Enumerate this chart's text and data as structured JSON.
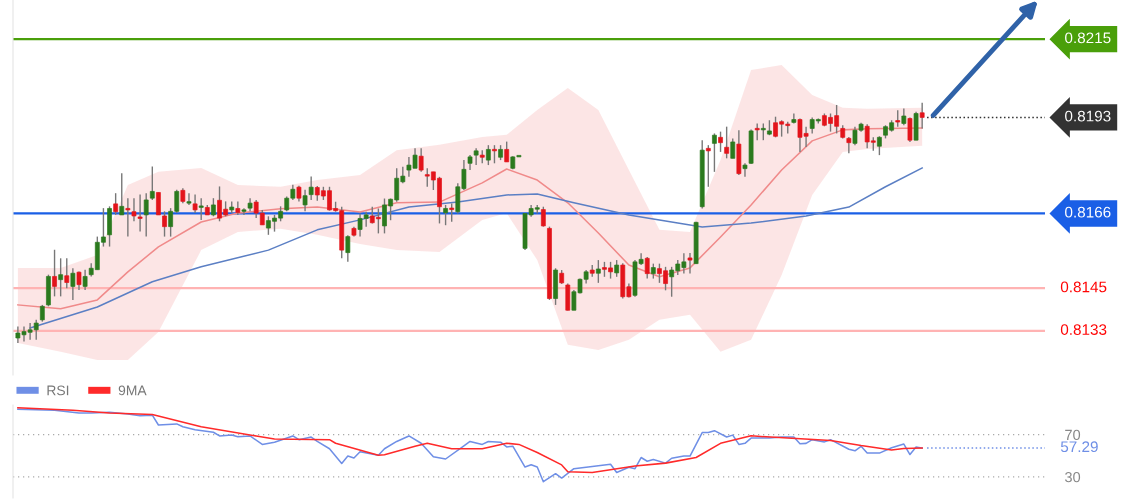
{
  "chart_data": [
    {
      "type": "candlestick",
      "tick_labels": false,
      "ylim": [
        0.81206,
        0.8226
      ],
      "colors": [
        "#2b7a1e",
        "#2b7a1e",
        "#2b7a1e",
        "#2b7a1e",
        "#2b7a1e",
        "#2b7a1e",
        "#e3141b",
        "#2b7a1e",
        "#e3141b",
        "#2b7a1e",
        "#e3141b",
        "#2b7a1e",
        "#2b7a1e",
        "#2b7a1e",
        "#2b7a1e",
        "#2b7a1e",
        "#e3141b",
        "#2b7a1e",
        "#e3141b",
        "#e3141b",
        "#e3141b",
        "#2b7a1e",
        "#2b7a1e",
        "#e3141b",
        "#e3141b",
        "#2b7a1e",
        "#2b7a1e",
        "#e3141b",
        "#2b7a1e",
        "#e3141b",
        "#2b7a1e",
        "#e3141b",
        "#2b7a1e",
        "#e3141b",
        "#e3141b",
        "#2b7a1e",
        "#e3141b",
        "#2b7a1e",
        "#2b7a1e",
        "#e3141b",
        "#e3141b",
        "#2b7a1e",
        "#2b7a1e",
        "#2b7a1e",
        "#2b7a1e",
        "#2b7a1e",
        "#e3141b",
        "#2b7a1e",
        "#2b7a1e",
        "#e3141b",
        "#e3141b",
        "#e3141b",
        "#e3141b",
        "#e3141b",
        "#2b7a1e",
        "#e3141b",
        "#2b7a1e",
        "#2b7a1e",
        "#e3141b",
        "#e3141b",
        "#2b7a1e",
        "#2b7a1e",
        "#2b7a1e",
        "#2b7a1e",
        "#2b7a1e",
        "#2b7a1e",
        "#e3141b",
        "#e3141b",
        "#e3141b",
        "#e3141b",
        "#2b7a1e",
        "#e3141b",
        "#2b7a1e",
        "#2b7a1e",
        "#2b7a1e",
        "#2b7a1e",
        "#e3141b",
        "#2b7a1e",
        "#e3141b",
        "#2b7a1e",
        "#e3141b",
        "#2b7a1e",
        "#2b7a1e",
        "#2b7a1e",
        "#2b7a1e",
        "#2b7a1e",
        "#e3141b",
        "#e3141b",
        "#2b7a1e",
        "#e3141b",
        "#e3141b",
        "#2b7a1e",
        "#2b7a1e",
        "#2b7a1e",
        "#e3141b",
        "#2b7a1e",
        "#e3141b",
        "#e3141b",
        "#2b7a1e",
        "#e3141b",
        "#e3141b",
        "#2b7a1e",
        "#2b7a1e",
        "#e3141b",
        "#2b7a1e",
        "#e3141b",
        "#e3141b",
        "#2b7a1e",
        "#2b7a1e",
        "#2b7a1e",
        "#e3141b",
        "#2b7a1e",
        "#2b7a1e",
        "#e3141b",
        "#2b7a1e",
        "#e3141b",
        "#e3141b",
        "#2b7a1e",
        "#e3141b",
        "#2b7a1e",
        "#2b7a1e",
        "#e3141b",
        "#2b7a1e",
        "#2b7a1e",
        "#e3141b",
        "#e3141b",
        "#e3141b",
        "#2b7a1e",
        "#e3141b",
        "#e3141b",
        "#2b7a1e",
        "#2b7a1e",
        "#e3141b",
        "#e3141b",
        "#e3141b",
        "#e3141b",
        "#e3141b",
        "#2b7a1e",
        "#2b7a1e",
        "#e3141b",
        "#e3141b",
        "#2b7a1e",
        "#2b7a1e",
        "#2b7a1e",
        "#e3141b",
        "#2b7a1e",
        "#e3141b",
        "#2b7a1e",
        "#e3141b"
      ],
      "categories": [
        null,
        null,
        null,
        null,
        null,
        null,
        null,
        null,
        null,
        null,
        null,
        null,
        null,
        null,
        null,
        null,
        null,
        null,
        null,
        null,
        null,
        null,
        null,
        null,
        null,
        null,
        null,
        null,
        null,
        null,
        null,
        null,
        null,
        null,
        null,
        null,
        null,
        null,
        null,
        null,
        null,
        null,
        null,
        null,
        null,
        null,
        null,
        null,
        null,
        null,
        null,
        null,
        null,
        null,
        null,
        null,
        null,
        null,
        null,
        null,
        null,
        null,
        null,
        null,
        null,
        null,
        null,
        null,
        null,
        null,
        null,
        null,
        null,
        null,
        null,
        null,
        null,
        null,
        null,
        null,
        null,
        null,
        null,
        null,
        null,
        null,
        null,
        null,
        null,
        null,
        null,
        null,
        null,
        null,
        null,
        null,
        null,
        null,
        null,
        null,
        null,
        null,
        null,
        null,
        null,
        null,
        null,
        null,
        null,
        null,
        null,
        null,
        null,
        null,
        null,
        null,
        null,
        null,
        null,
        null,
        null,
        null,
        null,
        null,
        null,
        null,
        null,
        null,
        null,
        null,
        null,
        null,
        null,
        null,
        null,
        null,
        null,
        null,
        null,
        null,
        null,
        null,
        null,
        null,
        null,
        null,
        null,
        null,
        null
      ],
      "ohlc": [
        [
          0.8131,
          0.81342,
          0.81296,
          0.81324
        ],
        [
          0.81319,
          0.81342,
          0.813,
          0.81328
        ],
        [
          0.81326,
          0.81352,
          0.81305,
          0.81333
        ],
        [
          0.81333,
          0.81361,
          0.81305,
          0.81352
        ],
        [
          0.81361,
          0.81403,
          0.81356,
          0.81399
        ],
        [
          0.81403,
          0.81488,
          0.81399,
          0.81483
        ],
        [
          0.81483,
          0.81558,
          0.81427,
          0.81455
        ],
        [
          0.81474,
          0.81534,
          0.81427,
          0.81488
        ],
        [
          0.81485,
          0.81534,
          0.8145,
          0.81466
        ],
        [
          0.81455,
          0.81506,
          0.81417,
          0.81492
        ],
        [
          0.81495,
          0.81497,
          0.81445,
          0.8146
        ],
        [
          0.81455,
          0.81502,
          0.81445,
          0.81483
        ],
        [
          0.81488,
          0.8152,
          0.81483,
          0.81506
        ],
        [
          0.81502,
          0.81595,
          0.81502,
          0.81579
        ],
        [
          0.81579,
          0.81675,
          0.81567,
          0.81594
        ],
        [
          0.816,
          0.8168,
          0.81567,
          0.81674
        ],
        [
          0.81687,
          0.81717,
          0.81656,
          0.81665
        ],
        [
          0.81656,
          0.81773,
          0.81656,
          0.8168
        ],
        [
          0.81673,
          0.81703,
          0.81595,
          0.8167
        ],
        [
          0.81665,
          0.81703,
          0.81638,
          0.81653
        ],
        [
          0.81647,
          0.81713,
          0.81609,
          0.81646
        ],
        [
          0.81656,
          0.81717,
          0.81595,
          0.81698
        ],
        [
          0.81703,
          0.81792,
          0.81698,
          0.81722
        ],
        [
          0.81719,
          0.81719,
          0.81656,
          0.81656
        ],
        [
          0.81653,
          0.81666,
          0.81595,
          0.81623
        ],
        [
          0.81623,
          0.81675,
          0.81595,
          0.81666
        ],
        [
          0.81666,
          0.81727,
          0.81661,
          0.81722
        ],
        [
          0.81725,
          0.81731,
          0.81689,
          0.81694
        ],
        [
          0.81689,
          0.81717,
          0.81684,
          0.8169
        ],
        [
          0.81687,
          0.81713,
          0.81661,
          0.8167
        ],
        [
          0.81677,
          0.81703,
          0.81642,
          0.81678
        ],
        [
          0.81677,
          0.81684,
          0.81656,
          0.81656
        ],
        [
          0.81656,
          0.81703,
          0.81652,
          0.81684
        ],
        [
          0.81697,
          0.81736,
          0.81638,
          0.81647
        ],
        [
          0.81672,
          0.81694,
          0.81652,
          0.81656
        ],
        [
          0.8167,
          0.81694,
          0.81661,
          0.81678
        ],
        [
          0.81674,
          0.81694,
          0.81656,
          0.81663
        ],
        [
          0.81666,
          0.81675,
          0.81656,
          0.81667
        ],
        [
          0.81675,
          0.81703,
          0.81666,
          0.81689
        ],
        [
          0.81692,
          0.81698,
          0.81647,
          0.81661
        ],
        [
          0.81661,
          0.8167,
          0.81628,
          0.81628
        ],
        [
          0.81619,
          0.81652,
          0.816,
          0.8164
        ],
        [
          0.81638,
          0.81656,
          0.81609,
          0.81647
        ],
        [
          0.81647,
          0.8168,
          0.81638,
          0.81666
        ],
        [
          0.8167,
          0.81708,
          0.81666,
          0.81703
        ],
        [
          0.81703,
          0.81741,
          0.81698,
          0.81728
        ],
        [
          0.81734,
          0.81738,
          0.81694,
          0.81703
        ],
        [
          0.81684,
          0.81727,
          0.81666,
          0.8171
        ],
        [
          0.81713,
          0.81764,
          0.81698,
          0.81734
        ],
        [
          0.81733,
          0.81737,
          0.81696,
          0.81712
        ],
        [
          0.81724,
          0.81735,
          0.81698,
          0.81709
        ],
        [
          0.81724,
          0.81735,
          0.81668,
          0.8167
        ],
        [
          0.81674,
          0.81693,
          0.81665,
          0.81668
        ],
        [
          0.81668,
          0.81679,
          0.81534,
          0.81557
        ],
        [
          0.8155,
          0.81599,
          0.81524,
          0.81595
        ],
        [
          0.81618,
          0.81623,
          0.81595,
          0.81599
        ],
        [
          0.81615,
          0.8166,
          0.81595,
          0.81646
        ],
        [
          0.81646,
          0.81665,
          0.81623,
          0.81656
        ],
        [
          0.81653,
          0.81679,
          0.81632,
          0.81634
        ],
        [
          0.81646,
          0.81674,
          0.81604,
          0.81645
        ],
        [
          0.81625,
          0.81702,
          0.81604,
          0.81684
        ],
        [
          0.81681,
          0.81702,
          0.81641,
          0.817
        ],
        [
          0.81698,
          0.81787,
          0.81693,
          0.81759
        ],
        [
          0.81749,
          0.81791,
          0.81745,
          0.81765
        ],
        [
          0.81782,
          0.81819,
          0.81763,
          0.81796
        ],
        [
          0.81787,
          0.81843,
          0.81787,
          0.81824
        ],
        [
          0.81821,
          0.81843,
          0.81777,
          0.81782
        ],
        [
          0.81766,
          0.81787,
          0.81735,
          0.81765
        ],
        [
          0.81777,
          0.81777,
          0.81726,
          0.81754
        ],
        [
          0.81759,
          0.81763,
          0.81632,
          0.81679
        ],
        [
          0.81662,
          0.81684,
          0.81627,
          0.81674
        ],
        [
          0.81672,
          0.81688,
          0.81637,
          0.81671
        ],
        [
          0.81665,
          0.81745,
          0.8166,
          0.81735
        ],
        [
          0.8173,
          0.8181,
          0.81726,
          0.81784
        ],
        [
          0.81801,
          0.81824,
          0.81782,
          0.81819
        ],
        [
          0.81824,
          0.81843,
          0.81796,
          0.81836
        ],
        [
          0.81824,
          0.81838,
          0.81801,
          0.81818
        ],
        [
          0.8181,
          0.81852,
          0.81796,
          0.8184
        ],
        [
          0.8184,
          0.81852,
          0.81801,
          0.81836
        ],
        [
          0.81818,
          0.81852,
          0.8181,
          0.8184
        ],
        [
          0.8184,
          0.81862,
          0.81805,
          0.81805
        ],
        [
          0.81787,
          0.81821,
          0.81784,
          0.81819
        ],
        [
          0.81819,
          0.81821,
          0.81817,
          0.8182
        ],
        [
          0.81562,
          0.8166,
          0.81557,
          0.8166
        ],
        [
          0.81656,
          0.81684,
          0.81651,
          0.81674
        ],
        [
          0.81672,
          0.81684,
          0.8166,
          0.81673
        ],
        [
          0.81671,
          0.81679,
          0.81623,
          0.81625
        ],
        [
          0.81618,
          0.81623,
          0.81417,
          0.81421
        ],
        [
          0.81421,
          0.81506,
          0.81403,
          0.81501
        ],
        [
          0.81492,
          0.81501,
          0.81462,
          0.81465
        ],
        [
          0.81459,
          0.81463,
          0.81387,
          0.81388
        ],
        [
          0.81388,
          0.81445,
          0.81388,
          0.8144
        ],
        [
          0.81437,
          0.81477,
          0.81435,
          0.81475
        ],
        [
          0.81475,
          0.81501,
          0.81463,
          0.81496
        ],
        [
          0.81501,
          0.81515,
          0.81482,
          0.81492
        ],
        [
          0.81492,
          0.81529,
          0.81465,
          0.81504
        ],
        [
          0.81508,
          0.81524,
          0.81482,
          0.81503
        ],
        [
          0.81507,
          0.81524,
          0.81477,
          0.81496
        ],
        [
          0.81493,
          0.81529,
          0.81482,
          0.81515
        ],
        [
          0.81515,
          0.8152,
          0.81421,
          0.81426
        ],
        [
          0.81454,
          0.81463,
          0.81424,
          0.81426
        ],
        [
          0.8143,
          0.81529,
          0.81426,
          0.81524
        ],
        [
          0.81519,
          0.81548,
          0.81515,
          0.81531
        ],
        [
          0.81534,
          0.81538,
          0.81477,
          0.81491
        ],
        [
          0.81491,
          0.81519,
          0.81477,
          0.81508
        ],
        [
          0.81505,
          0.81519,
          0.81465,
          0.81491
        ],
        [
          0.81499,
          0.8151,
          0.81444,
          0.81463
        ],
        [
          0.81482,
          0.8151,
          0.81426,
          0.81501
        ],
        [
          0.81499,
          0.81529,
          0.81487,
          0.81518
        ],
        [
          0.81508,
          0.81548,
          0.81491,
          0.81524
        ],
        [
          0.81535,
          0.81549,
          0.81491,
          0.81529
        ],
        [
          0.81519,
          0.81637,
          0.81518,
          0.81635
        ],
        [
          0.81679,
          0.81866,
          0.81674,
          0.81838
        ],
        [
          0.81843,
          0.81852,
          0.81735,
          0.81836
        ],
        [
          0.81857,
          0.81885,
          0.81777,
          0.8188
        ],
        [
          0.81874,
          0.8189,
          0.81833,
          0.81859
        ],
        [
          0.81846,
          0.81904,
          0.81815,
          0.81829
        ],
        [
          0.81815,
          0.81871,
          0.81815,
          0.81861
        ],
        [
          0.81855,
          0.81894,
          0.81768,
          0.81772
        ],
        [
          0.81786,
          0.81801,
          0.81763,
          0.81796
        ],
        [
          0.81801,
          0.81896,
          0.81799,
          0.81892
        ],
        [
          0.81896,
          0.81913,
          0.81866,
          0.81895
        ],
        [
          0.81895,
          0.81913,
          0.81866,
          0.81896
        ],
        [
          0.81883,
          0.81922,
          0.8188,
          0.81892
        ],
        [
          0.81915,
          0.81932,
          0.81874,
          0.81877
        ],
        [
          0.81918,
          0.81922,
          0.81876,
          0.81911
        ],
        [
          0.81908,
          0.81918,
          0.81885,
          0.81907
        ],
        [
          0.81916,
          0.81941,
          0.81913,
          0.81924
        ],
        [
          0.81924,
          0.81927,
          0.81833,
          0.81874
        ],
        [
          0.81885,
          0.81904,
          0.81847,
          0.81877
        ],
        [
          0.81899,
          0.8193,
          0.81885,
          0.81924
        ],
        [
          0.8192,
          0.81927,
          0.81913,
          0.81921
        ],
        [
          0.81935,
          0.81941,
          0.81905,
          0.81908
        ],
        [
          0.8193,
          0.81941,
          0.8189,
          0.81913
        ],
        [
          0.81935,
          0.81965,
          0.81885,
          0.81905
        ],
        [
          0.81899,
          0.81908,
          0.81871,
          0.81874
        ],
        [
          0.81871,
          0.81875,
          0.81829,
          0.81859
        ],
        [
          0.81857,
          0.81904,
          0.81852,
          0.81894
        ],
        [
          0.81894,
          0.81915,
          0.8189,
          0.81911
        ],
        [
          0.81905,
          0.81911,
          0.81843,
          0.81861
        ],
        [
          0.81861,
          0.81874,
          0.81836,
          0.8186
        ],
        [
          0.81849,
          0.81877,
          0.81824,
          0.81874
        ],
        [
          0.8188,
          0.81908,
          0.81871,
          0.81904
        ],
        [
          0.81894,
          0.81922,
          0.8189,
          0.81915
        ],
        [
          0.81918,
          0.8195,
          0.81904,
          0.81917
        ],
        [
          0.81913,
          0.81955,
          0.81908,
          0.81934
        ],
        [
          0.81927,
          0.8193,
          0.81861,
          0.81866
        ],
        [
          0.81866,
          0.81946,
          0.81866,
          0.81941
        ],
        [
          0.81943,
          0.81971,
          0.81899,
          0.8193
        ]
      ],
      "series": [
        {
          "type": "line",
          "color": "#f08a8a",
          "values": [
            0.81403,
            null,
            null,
            null,
            null,
            null,
            null,
            0.81392,
            null,
            null,
            null,
            null,
            null,
            0.81417,
            null,
            null,
            null,
            null,
            0.81496,
            null,
            null,
            null,
            null,
            0.81566,
            null,
            null,
            null,
            null,
            null,
            null,
            0.81636,
            null,
            null,
            null,
            null,
            null,
            0.81661,
            null,
            null,
            null,
            null,
            null,
            null,
            0.81673,
            null,
            null,
            null,
            null,
            null,
            0.81678,
            null,
            null,
            null,
            null,
            null,
            null,
            0.81664,
            null,
            null,
            null,
            null,
            null,
            0.8169,
            null,
            null,
            null,
            null,
            null,
            null,
            0.81692,
            null,
            null,
            null,
            null,
            null,
            null,
            0.81746,
            null,
            null,
            null,
            0.81785,
            null,
            null,
            null,
            null,
            0.81754,
            null,
            null,
            null,
            null,
            0.8169,
            null,
            null,
            null,
            null,
            0.81605,
            null,
            null,
            null,
            null,
            0.81515,
            null,
            null,
            null,
            null,
            0.81482,
            null,
            null,
            null,
            null,
            0.81507,
            null,
            null,
            null,
            null,
            0.81594,
            null,
            null,
            null,
            null,
            0.81684,
            null,
            null,
            null,
            null,
            0.81782,
            null,
            null,
            null,
            null,
            0.81864,
            null,
            null,
            null,
            null,
            0.81895,
            null,
            null,
            null,
            0.81898,
            null,
            null,
            null,
            null,
            null,
            null,
            null,
            null,
            0.819
          ],
          "upper": [
            0.81507,
            null,
            null,
            null,
            null,
            null,
            null,
            0.81507,
            null,
            null,
            null,
            null,
            null,
            0.81543,
            null,
            null,
            null,
            null,
            0.8174,
            null,
            null,
            null,
            null,
            0.81777,
            null,
            null,
            null,
            null,
            null,
            null,
            0.81788,
            null,
            null,
            null,
            null,
            null,
            0.8174,
            null,
            null,
            null,
            null,
            null,
            null,
            0.81735,
            null,
            null,
            null,
            null,
            null,
            0.81754,
            null,
            null,
            null,
            null,
            null,
            null,
            0.81768,
            null,
            null,
            null,
            null,
            null,
            0.81838,
            null,
            null,
            null,
            null,
            null,
            null,
            0.81853,
            null,
            null,
            null,
            null,
            null,
            null,
            0.81875,
            null,
            null,
            null,
            0.81881,
            null,
            null,
            null,
            null,
            0.81951,
            null,
            null,
            null,
            null,
            0.82013,
            null,
            null,
            null,
            null,
            0.81951,
            null,
            null,
            null,
            null,
            0.81782,
            null,
            null,
            null,
            null,
            0.81614,
            null,
            null,
            null,
            null,
            0.81608,
            null,
            null,
            null,
            null,
            0.8181,
            null,
            null,
            null,
            null,
            0.82063,
            null,
            null,
            null,
            null,
            0.82077,
            null,
            null,
            null,
            null,
            0.81993,
            null,
            null,
            null,
            null,
            0.81957,
            null,
            null,
            null,
            0.81954,
            null,
            null,
            null,
            null,
            null,
            null,
            null,
            null,
            0.81957
          ],
          "lower": [
            0.81296,
            null,
            null,
            null,
            null,
            null,
            null,
            0.81271,
            null,
            null,
            null,
            null,
            null,
            0.81248,
            null,
            null,
            null,
            null,
            0.81248,
            null,
            null,
            null,
            null,
            0.81327,
            null,
            null,
            null,
            null,
            null,
            null,
            0.81557,
            null,
            null,
            null,
            null,
            null,
            0.81608,
            null,
            null,
            null,
            null,
            null,
            null,
            0.81617,
            null,
            null,
            null,
            null,
            null,
            0.816,
            null,
            null,
            null,
            null,
            null,
            null,
            0.81574,
            null,
            null,
            null,
            null,
            null,
            0.81557,
            null,
            null,
            null,
            null,
            null,
            null,
            0.81552,
            null,
            null,
            null,
            null,
            null,
            null,
            0.81642,
            null,
            null,
            null,
            0.81661,
            null,
            null,
            null,
            null,
            0.81529,
            null,
            null,
            null,
            null,
            0.81291,
            null,
            null,
            null,
            null,
            0.81276,
            null,
            null,
            null,
            null,
            0.81305,
            null,
            null,
            null,
            null,
            0.81361,
            null,
            null,
            null,
            null,
            0.81375,
            null,
            null,
            null,
            null,
            0.81271,
            null,
            null,
            null,
            null,
            0.81305,
            null,
            null,
            null,
            null,
            0.81487,
            null,
            null,
            null,
            null,
            0.81712,
            null,
            null,
            null,
            null,
            0.81833,
            null,
            null,
            null,
            0.81841,
            null,
            null,
            null,
            null,
            null,
            null,
            null,
            null,
            0.8185
          ]
        },
        {
          "type": "line",
          "color": "#5b7fc4",
          "values": [
            null,
            null,
            0.81338,
            null,
            null,
            null,
            null,
            null,
            null,
            null,
            null,
            null,
            null,
            0.81397,
            null,
            null,
            null,
            null,
            null,
            null,
            null,
            null,
            0.81468,
            null,
            null,
            null,
            null,
            null,
            null,
            null,
            0.8151,
            null,
            null,
            null,
            null,
            null,
            null,
            null,
            null,
            null,
            null,
            0.81557,
            null,
            null,
            null,
            null,
            null,
            null,
            null,
            0.81614,
            null,
            null,
            null,
            null,
            null,
            null,
            0.81642,
            null,
            null,
            null,
            null,
            null,
            null,
            null,
            0.81678,
            null,
            null,
            null,
            null,
            null,
            null,
            null,
            0.81692,
            null,
            null,
            null,
            null,
            null,
            null,
            null,
            0.81712,
            null,
            null,
            null,
            null,
            0.81715,
            null,
            null,
            null,
            null,
            null,
            0.8169,
            null,
            null,
            null,
            null,
            null,
            null,
            null,
            null,
            0.81656,
            null,
            null,
            null,
            null,
            null,
            null,
            null,
            null,
            null,
            null,
            null,
            0.81622,
            null,
            null,
            null,
            null,
            null,
            null,
            null,
            0.81633,
            null,
            null,
            null,
            null,
            null,
            null,
            null,
            null,
            0.81653,
            null,
            null,
            null,
            null,
            null,
            null,
            0.81678,
            null,
            null,
            null,
            null,
            null,
            0.81735,
            null,
            null,
            null,
            null,
            null,
            0.81788
          ]
        }
      ],
      "ref_lines": [
        {
          "axis": "y",
          "value": 0.8215,
          "label": "0.8215",
          "color": "#4a9f0a"
        },
        {
          "axis": "y",
          "value": 0.8193,
          "label": "0.8193",
          "color": "#333333",
          "line_style": "dotted"
        },
        {
          "axis": "y",
          "value": 0.8166,
          "label": "0.8166",
          "color": "#1a5fe6"
        },
        {
          "axis": "y",
          "value": 0.8145,
          "label": "0.8145",
          "color": "#ffb3b3"
        },
        {
          "axis": "y",
          "value": 0.8133,
          "label": "0.8133",
          "color": "#ffb3b3"
        }
      ]
    },
    {
      "type": "line",
      "ylim": [
        10,
        98
      ],
      "yticks": [
        30,
        70
      ],
      "tick_labels": "y",
      "grid": "y",
      "legend": "top left",
      "categories": [
        null,
        null,
        null,
        null,
        null,
        null,
        null,
        null,
        null,
        null,
        null,
        null,
        null,
        null,
        null,
        null,
        null,
        null,
        null,
        null,
        null,
        null,
        null,
        null,
        null,
        null,
        null,
        null,
        null,
        null,
        null,
        null,
        null,
        null,
        null,
        null,
        null,
        null,
        null,
        null,
        null,
        null,
        null,
        null,
        null,
        null,
        null,
        null,
        null,
        null,
        null,
        null,
        null,
        null,
        null,
        null,
        null,
        null,
        null,
        null,
        null,
        null,
        null,
        null,
        null,
        null,
        null,
        null,
        null,
        null,
        null,
        null,
        null,
        null,
        null,
        null,
        null,
        null,
        null,
        null,
        null,
        null,
        null,
        null,
        null,
        null,
        null,
        null,
        null,
        null,
        null,
        null,
        null,
        null,
        null,
        null,
        null,
        null,
        null,
        null,
        null,
        null,
        null,
        null,
        null,
        null,
        null,
        null,
        null,
        null,
        null,
        null,
        null,
        null,
        null,
        null,
        null,
        null,
        null,
        null,
        null,
        null,
        null,
        null,
        null,
        null,
        null,
        null,
        null,
        null,
        null,
        null,
        null,
        null,
        null,
        null,
        null,
        null,
        null,
        null,
        null,
        null,
        null,
        null,
        null,
        null,
        null,
        null,
        null
      ],
      "series": [
        {
          "name": "RSI",
          "color": "#6f8fe6",
          "values": [
            94.0,
            null,
            null,
            null,
            null,
            null,
            93.0,
            null,
            null,
            null,
            90.5,
            null,
            90.5,
            null,
            null,
            91.2,
            null,
            null,
            89.5,
            null,
            87.8,
            null,
            88.4,
            79.1,
            null,
            null,
            80.1,
            77.4,
            null,
            74.6,
            null,
            null,
            72.2,
            68.7,
            null,
            69.7,
            68.0,
            null,
            68.7,
            null,
            60.7,
            null,
            62.8,
            null,
            null,
            68.7,
            65.2,
            null,
            67.7,
            63.5,
            null,
            56.6,
            null,
            42.7,
            49.7,
            47.9,
            53.8,
            null,
            null,
            50.4,
            56.6,
            null,
            63.5,
            null,
            68.7,
            null,
            61.8,
            null,
            49.0,
            null,
            46.9,
            null,
            null,
            59.3,
            63.5,
            null,
            60.7,
            63.5,
            null,
            62.8,
            58.3,
            59.0,
            null,
            39.3,
            41.4,
            39.3,
            25.4,
            null,
            33.0,
            28.9,
            null,
            37.7,
            null,
            39.1,
            null,
            40.6,
            null,
            42.0,
            34.2,
            null,
            39.1,
            37.7,
            48.3,
            44.8,
            46.5,
            null,
            43.0,
            47.6,
            null,
            49.7,
            49.7,
            null,
            71.9,
            71.9,
            73.7,
            null,
            67.7,
            69.5,
            60.7,
            61.7,
            66.7,
            null,
            null,
            66.7,
            null,
            67.7,
            null,
            67.7,
            61.4,
            61.7,
            65.2,
            null,
            63.1,
            65.2,
            null,
            null,
            56.1,
            54.7,
            58.9,
            52.5,
            null,
            52.5,
            null,
            57.5,
            null,
            61.0,
            51.1,
            58.2,
            57.29
          ]
        },
        {
          "name": "9MA",
          "color": "#ff2a2a",
          "values": [
            95.4,
            null,
            null,
            null,
            null,
            null,
            null,
            null,
            null,
            93.0,
            null,
            null,
            null,
            null,
            null,
            90.5,
            null,
            null,
            null,
            null,
            null,
            null,
            89.1,
            null,
            null,
            null,
            null,
            null,
            null,
            null,
            77.4,
            null,
            null,
            null,
            null,
            null,
            null,
            null,
            null,
            68.7,
            null,
            null,
            65.9,
            null,
            null,
            null,
            null,
            null,
            null,
            null,
            null,
            65.2,
            61.8,
            null,
            null,
            null,
            null,
            null,
            null,
            50.4,
            51.0,
            null,
            null,
            null,
            null,
            59.0,
            null,
            61.8,
            null,
            null,
            null,
            56.6,
            null,
            null,
            null,
            null,
            56.6,
            null,
            null,
            null,
            61.8,
            null,
            60.7,
            null,
            null,
            53.1,
            null,
            null,
            null,
            41.3,
            34.9,
            null,
            null,
            null,
            34.2,
            null,
            null,
            null,
            null,
            null,
            null,
            40.2,
            null,
            null,
            null,
            null,
            43.0,
            null,
            null,
            null,
            null,
            48.3,
            null,
            null,
            null,
            61.7,
            null,
            null,
            null,
            null,
            68.8,
            null,
            null,
            null,
            null,
            null,
            66.7,
            null,
            null,
            null,
            null,
            null,
            null,
            64.5,
            null,
            null,
            null,
            null,
            59.6,
            null,
            null,
            null,
            null,
            55.4,
            null,
            56.8,
            null,
            null,
            57.29
          ]
        }
      ],
      "ref_lines": [
        {
          "axis": "y",
          "value": 57.29,
          "label": "57.29",
          "color": "#6f8fe6",
          "line_style": "dotted"
        }
      ]
    }
  ]
}
